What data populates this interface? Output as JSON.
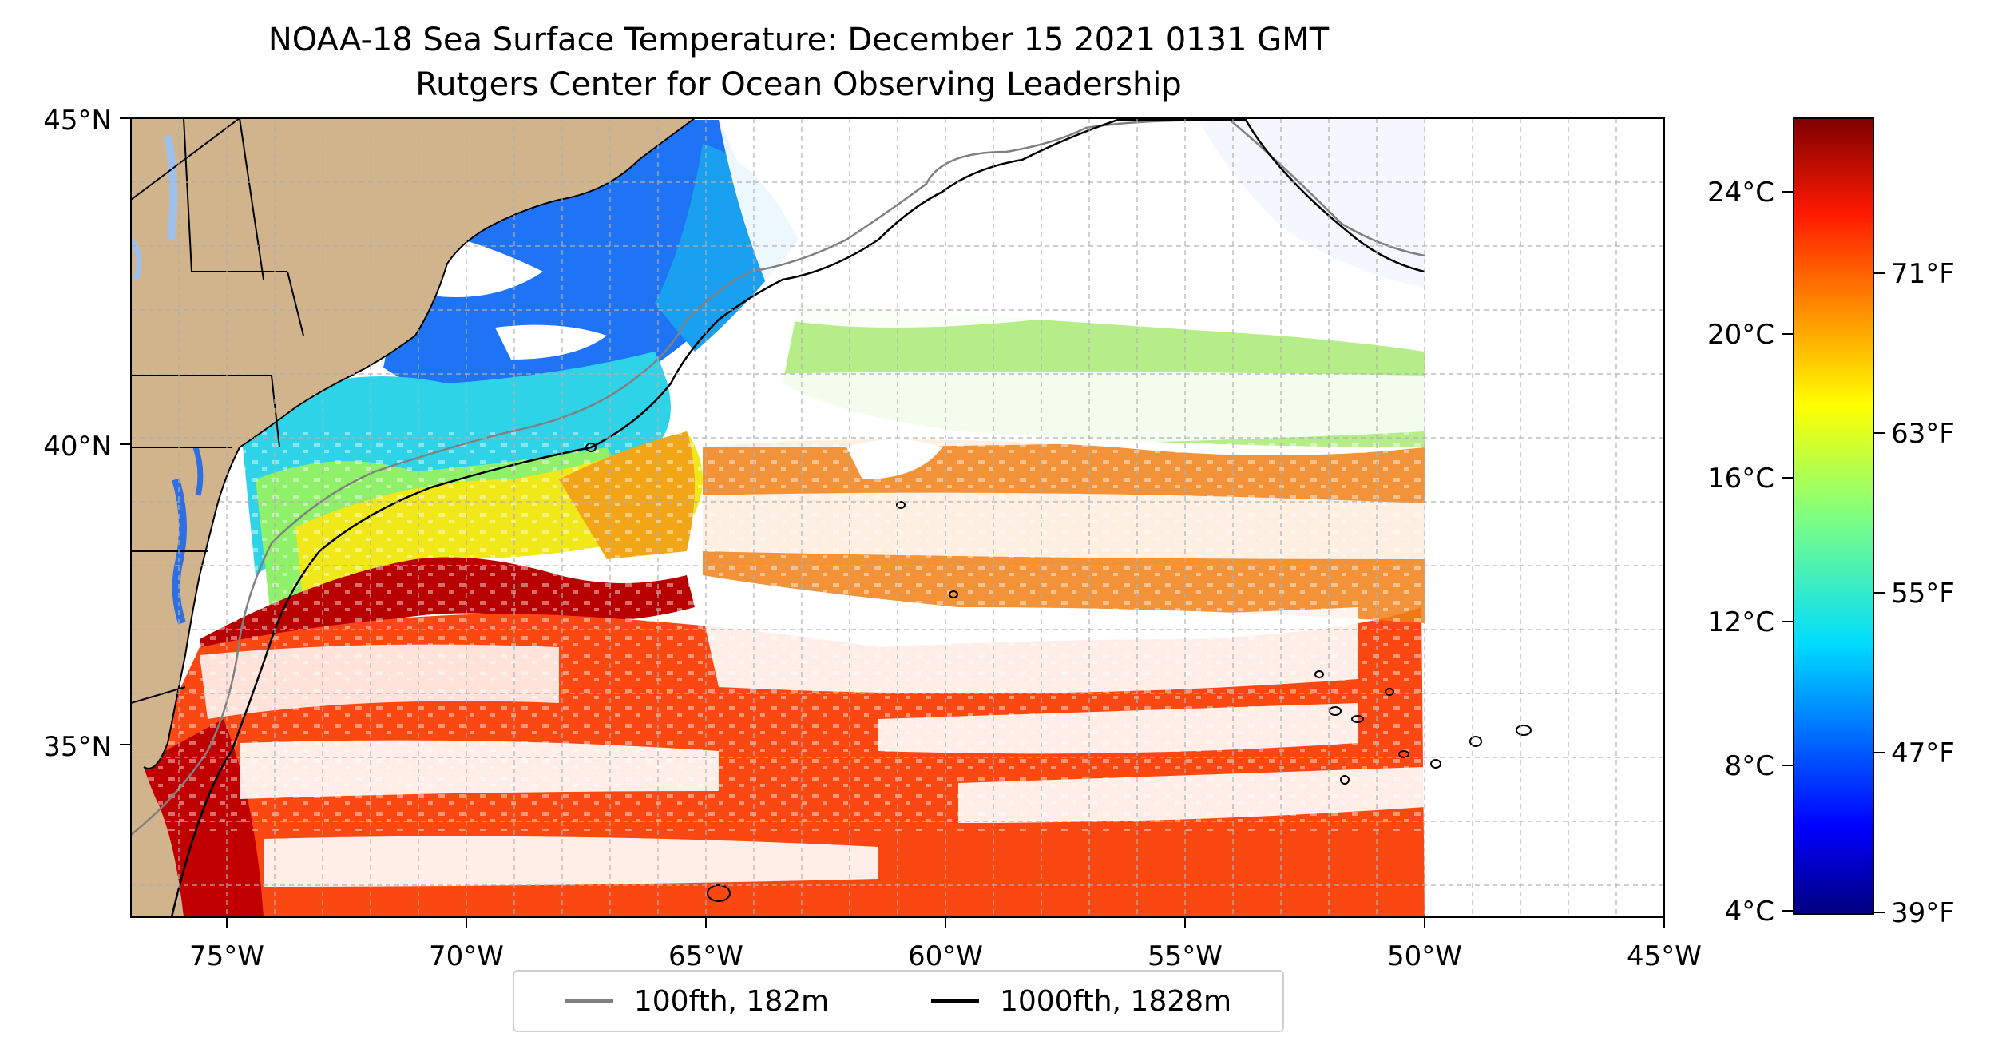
{
  "title": "NOAA-18 Sea Surface Temperature: December 15 2021 0131 GMT",
  "subtitle": "Rutgers Center for Ocean Observing Leadership",
  "map": {
    "lon_range": [
      -77,
      -45
    ],
    "lat_range": [
      32.5,
      45
    ],
    "lon_ticks": [
      "75°W",
      "70°W",
      "65°W",
      "60°W",
      "55°W",
      "50°W",
      "45°W"
    ],
    "lat_ticks": [
      "45°N",
      "40°N",
      "35°N"
    ],
    "land_color": "#d2b48c",
    "lake_color": "#9ec0ea",
    "grid": true
  },
  "colorbar": {
    "colormap": "jet",
    "celsius_ticks": [
      "24°C",
      "20°C",
      "16°C",
      "12°C",
      "8°C",
      "4°C"
    ],
    "fahrenheit_ticks": [
      "71°F",
      "63°F",
      "55°F",
      "47°F",
      "39°F"
    ]
  },
  "legend": {
    "items": [
      {
        "label": "100fth, 182m",
        "color": "#808080"
      },
      {
        "label": "1000fth, 1828m",
        "color": "#000000"
      }
    ]
  }
}
